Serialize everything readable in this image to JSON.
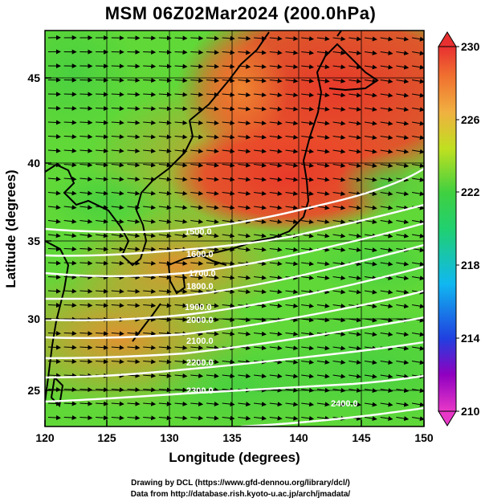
{
  "title": "MSM 06Z02Mar2024 (200.0hPa)",
  "axes": {
    "xlabel": "Longitude (degrees)",
    "ylabel": "Latitude  (degrees)",
    "xlim": [
      120,
      150
    ],
    "ylim": [
      22.5,
      47.5
    ],
    "xticks": [
      "120",
      "125",
      "130",
      "135",
      "140",
      "145",
      "150"
    ],
    "yticks": [
      "25",
      "30",
      "35",
      "40",
      "45"
    ]
  },
  "colorbar": {
    "range": [
      210,
      230
    ],
    "ticks": [
      "210",
      "214",
      "218",
      "222",
      "226",
      "230"
    ],
    "colors": [
      "#e838c8",
      "#9000c0",
      "#2040e0",
      "#10c8f0",
      "#20d080",
      "#30d040",
      "#b8e020",
      "#f0c040",
      "#f08030",
      "#e83030"
    ]
  },
  "contour_labels": [
    "1500.0",
    "1600.0",
    "1700.0",
    "1800.0",
    "1900.0",
    "2000.0",
    "2100.0",
    "2200.0",
    "2300.0",
    "2400.0"
  ],
  "credits": {
    "line1": "Drawing by DCL (https://www.gfd-dennou.org/library/dcl/)",
    "line2": "Data from http://database.rish.kyoto-u.ac.jp/arch/jmadata/"
  },
  "chart_data": {
    "type": "heatmap",
    "title": "MSM 06Z02Mar2024 (200.0hPa)",
    "xlabel": "Longitude (degrees)",
    "ylabel": "Latitude  (degrees)",
    "xlim": [
      120,
      150
    ],
    "ylim": [
      22.5,
      47.5
    ],
    "colorbar_range": [
      210,
      230
    ],
    "field_samples": [
      {
        "lon": 121,
        "lat": 46,
        "value": 222
      },
      {
        "lon": 128,
        "lat": 46,
        "value": 223
      },
      {
        "lon": 136,
        "lat": 46,
        "value": 228
      },
      {
        "lon": 146,
        "lat": 46,
        "value": 229
      },
      {
        "lon": 128,
        "lat": 41,
        "value": 226
      },
      {
        "lon": 138,
        "lat": 38,
        "value": 228
      },
      {
        "lon": 146,
        "lat": 40,
        "value": 226
      },
      {
        "lon": 122,
        "lat": 36,
        "value": 223
      },
      {
        "lon": 130,
        "lat": 33,
        "value": 226
      },
      {
        "lon": 121,
        "lat": 29,
        "value": 227
      },
      {
        "lon": 128,
        "lat": 29,
        "value": 225
      },
      {
        "lon": 140,
        "lat": 30,
        "value": 223
      },
      {
        "lon": 148,
        "lat": 26,
        "value": 222
      },
      {
        "lon": 125,
        "lat": 24,
        "value": 223
      }
    ],
    "contours": [
      {
        "label": "1500.0",
        "label_lon": 131,
        "label_lat": 35.9
      },
      {
        "label": "1600.0",
        "label_lon": 131.3,
        "label_lat": 34.6
      },
      {
        "label": "1700.0",
        "label_lon": 131.6,
        "label_lat": 33.2
      },
      {
        "label": "1800.0",
        "label_lon": 131.2,
        "label_lat": 32.2
      },
      {
        "label": "1900.0",
        "label_lon": 131,
        "label_lat": 30.8
      },
      {
        "label": "2000.0",
        "label_lon": 131.5,
        "label_lat": 29.5
      },
      {
        "label": "2100.0",
        "label_lon": 131.5,
        "label_lat": 27.8
      },
      {
        "label": "2200.0",
        "label_lon": 132,
        "label_lat": 26.5
      },
      {
        "label": "2300.0",
        "label_lon": 131.5,
        "label_lat": 24.5
      },
      {
        "label": "2400.0",
        "label_lon": 145.5,
        "label_lat": 23.6
      }
    ],
    "wind": "westerly"
  }
}
